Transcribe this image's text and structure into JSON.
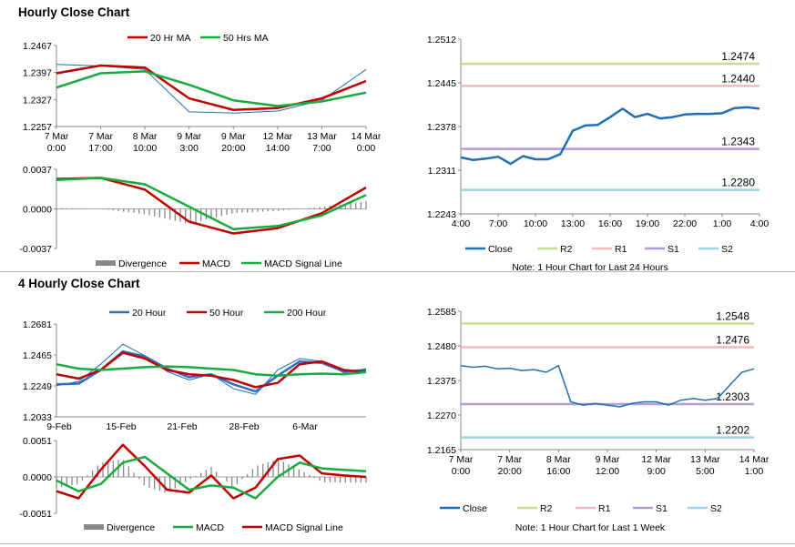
{
  "sections": {
    "hourly_title": "Hourly Close Chart",
    "four_hourly_title": "4 Hourly Close Chart"
  },
  "colors": {
    "red": "#c00000",
    "green": "#1aab40",
    "blue": "#2e6fbf",
    "close": "#1f6fb4",
    "r2": "#c6dd99",
    "r1": "#eebcb9",
    "s1": "#b59dd0",
    "s2": "#9fd3e4",
    "bars": "#888888"
  },
  "chart_data": [
    {
      "id": "hourly-price",
      "type": "line",
      "legend": [
        "20 Hr MA",
        "50 Hrs MA"
      ],
      "ylim": [
        1.2257,
        1.2467
      ],
      "yticks": [
        "1.2467",
        "1.2397",
        "1.2327",
        "1.2257"
      ],
      "xticks": [
        [
          "7 Mar",
          "0:00"
        ],
        [
          "7 Mar",
          "17:00"
        ],
        [
          "8 Mar",
          "10:00"
        ],
        [
          "9 Mar",
          "3:00"
        ],
        [
          "9 Mar",
          "20:00"
        ],
        [
          "12 Mar",
          "14:00"
        ],
        [
          "13 Mar",
          "7:00"
        ],
        [
          "14 Mar",
          "0:00"
        ]
      ],
      "x": [
        0,
        1,
        2,
        3,
        4,
        5,
        6,
        7
      ],
      "series": [
        {
          "name": "Close",
          "values": [
            1.2418,
            1.2414,
            1.2405,
            1.2295,
            1.2292,
            1.2297,
            1.2325,
            1.2405
          ]
        },
        {
          "name": "20 Hr MA",
          "values": [
            1.2395,
            1.2415,
            1.241,
            1.233,
            1.23,
            1.2305,
            1.233,
            1.2375
          ]
        },
        {
          "name": "50 Hrs MA",
          "values": [
            1.2358,
            1.2395,
            1.24,
            1.2365,
            1.2325,
            1.231,
            1.2322,
            1.2345
          ]
        }
      ]
    },
    {
      "id": "hourly-macd",
      "type": "line",
      "legend": [
        "Divergence",
        "MACD",
        "MACD Signal Line"
      ],
      "ylim": [
        -0.0037,
        0.0037
      ],
      "yticks": [
        "0.0037",
        "0.0000",
        "-0.0037"
      ],
      "x": [
        0,
        1,
        2,
        3,
        4,
        5,
        6,
        7
      ],
      "series": [
        {
          "name": "MACD",
          "values": [
            0.0028,
            0.0029,
            0.0018,
            -0.0012,
            -0.0023,
            -0.0018,
            -0.0004,
            0.002
          ]
        },
        {
          "name": "MACD Signal Line",
          "values": [
            0.0027,
            0.0029,
            0.0023,
            0.0002,
            -0.0019,
            -0.0016,
            -0.0006,
            0.0013
          ]
        }
      ]
    },
    {
      "id": "hourly-levels",
      "type": "line",
      "ylim": [
        1.2243,
        1.2512
      ],
      "yticks": [
        "1.2512",
        "1.2445",
        "1.2378",
        "1.2311",
        "1.2243"
      ],
      "xticks": [
        "4:00",
        "7:00",
        "10:00",
        "13:00",
        "16:00",
        "19:00",
        "22:00",
        "1:00",
        "4:00"
      ],
      "x": [
        0,
        1,
        2,
        3,
        4,
        5,
        6,
        7,
        8,
        9,
        10,
        11,
        12,
        13,
        14,
        15,
        16,
        17,
        18,
        19,
        20,
        21,
        22,
        23,
        24
      ],
      "series": [
        {
          "name": "Close",
          "values": [
            1.233,
            1.2326,
            1.2328,
            1.2331,
            1.232,
            1.2332,
            1.2327,
            1.2327,
            1.2335,
            1.2371,
            1.2379,
            1.238,
            1.2392,
            1.2405,
            1.2392,
            1.2397,
            1.239,
            1.2392,
            1.2396,
            1.2397,
            1.2397,
            1.2398,
            1.2406,
            1.2407,
            1.2405
          ]
        }
      ],
      "levels": [
        {
          "name": "R2",
          "value": 1.2474,
          "label": "1.2474"
        },
        {
          "name": "R1",
          "value": 1.244,
          "label": "1.2440"
        },
        {
          "name": "S1",
          "value": 1.2343,
          "label": "1.2343"
        },
        {
          "name": "S2",
          "value": 1.228,
          "label": "1.2280"
        }
      ],
      "legend": [
        "Close",
        "R2",
        "R1",
        "S1",
        "S2"
      ],
      "note": "Note: 1 Hour Chart for Last 24 Hours"
    },
    {
      "id": "four-hourly-price",
      "type": "line",
      "legend": [
        "20 Hour",
        "50 Hour",
        "200 Hour"
      ],
      "ylim": [
        1.2033,
        1.2681
      ],
      "yticks": [
        "1.2681",
        "1.2465",
        "1.2249",
        "1.2033"
      ],
      "xticks": [
        "9-Feb",
        "15-Feb",
        "21-Feb",
        "28-Feb",
        "6-Mar"
      ],
      "x": [
        0,
        1,
        2,
        3,
        4,
        5,
        6,
        7,
        8,
        9,
        10,
        11,
        12,
        13,
        14
      ],
      "series": [
        {
          "name": "Close",
          "values": [
            1.225,
            1.228,
            1.24,
            1.254,
            1.246,
            1.235,
            1.229,
            1.233,
            1.223,
            1.219,
            1.236,
            1.244,
            1.242,
            1.234,
            1.237
          ]
        },
        {
          "name": "20 Hour",
          "values": [
            1.226,
            1.2265,
            1.236,
            1.249,
            1.2455,
            1.237,
            1.231,
            1.233,
            1.226,
            1.221,
            1.232,
            1.242,
            1.241,
            1.235,
            1.236
          ]
        },
        {
          "name": "50 Hour",
          "values": [
            1.233,
            1.23,
            1.236,
            1.248,
            1.244,
            1.236,
            1.233,
            1.232,
            1.229,
            1.224,
            1.227,
            1.24,
            1.242,
            1.236,
            1.2345
          ]
        },
        {
          "name": "200 Hour",
          "values": [
            1.24,
            1.237,
            1.236,
            1.237,
            1.238,
            1.2385,
            1.238,
            1.237,
            1.236,
            1.233,
            1.232,
            1.233,
            1.2335,
            1.233,
            1.2345
          ]
        }
      ]
    },
    {
      "id": "four-hourly-macd",
      "type": "line",
      "legend": [
        "Divergence",
        "MACD",
        "MACD Signal Line"
      ],
      "ylim": [
        -0.0051,
        0.0051
      ],
      "yticks": [
        "0.0051",
        "0.0000",
        "-0.0051"
      ],
      "x": [
        0,
        1,
        2,
        3,
        4,
        5,
        6,
        7,
        8,
        9,
        10,
        11,
        12,
        13,
        14
      ],
      "series": [
        {
          "name": "MACD",
          "values": [
            -0.002,
            -0.003,
            0.001,
            0.0045,
            0.0015,
            -0.0018,
            -0.0022,
            0.0002,
            -0.003,
            -0.0015,
            0.0025,
            0.003,
            0.0005,
            0.0002,
            0.0
          ]
        },
        {
          "name": "MACD Signal Line",
          "values": [
            -0.0005,
            -0.002,
            -0.001,
            0.002,
            0.0028,
            0.0005,
            -0.0018,
            -0.0012,
            -0.0015,
            -0.003,
            0.0,
            0.002,
            0.0012,
            0.001,
            0.0008
          ]
        }
      ]
    },
    {
      "id": "four-hourly-levels",
      "type": "line",
      "ylim": [
        1.2165,
        1.2585
      ],
      "yticks": [
        "1.2585",
        "1.2480",
        "1.2375",
        "1.2270",
        "1.2165"
      ],
      "xticks": [
        [
          "7 Mar",
          "0:00"
        ],
        [
          "7 Mar",
          "20:00"
        ],
        [
          "8 Mar",
          "16:00"
        ],
        [
          "9 Mar",
          "12:00"
        ],
        [
          "12 Mar",
          "9:00"
        ],
        [
          "13 Mar",
          "5:00"
        ],
        [
          "14 Mar",
          "1:00"
        ]
      ],
      "x": [
        0,
        1,
        2,
        3,
        4,
        5,
        6,
        7,
        8,
        9,
        10,
        11,
        12,
        13,
        14,
        15,
        16,
        17,
        18,
        19,
        20,
        21,
        22,
        23,
        24
      ],
      "series": [
        {
          "name": "Close",
          "values": [
            1.242,
            1.2415,
            1.2418,
            1.241,
            1.2412,
            1.2405,
            1.2408,
            1.24,
            1.242,
            1.231,
            1.23,
            1.2305,
            1.23,
            1.2295,
            1.2305,
            1.231,
            1.231,
            1.23,
            1.2315,
            1.232,
            1.2315,
            1.232,
            1.236,
            1.24,
            1.241
          ]
        }
      ],
      "levels": [
        {
          "name": "R2",
          "value": 1.2548,
          "label": "1.2548"
        },
        {
          "name": "R1",
          "value": 1.2476,
          "label": "1.2476"
        },
        {
          "name": "S1",
          "value": 1.2303,
          "label": "1.2303"
        },
        {
          "name": "S2",
          "value": 1.2202,
          "label": "1.2202"
        }
      ],
      "legend": [
        "Close",
        "R2",
        "R1",
        "S1",
        "S2"
      ],
      "note": "Note: 1 Hour Chart for Last 1 Week"
    }
  ]
}
